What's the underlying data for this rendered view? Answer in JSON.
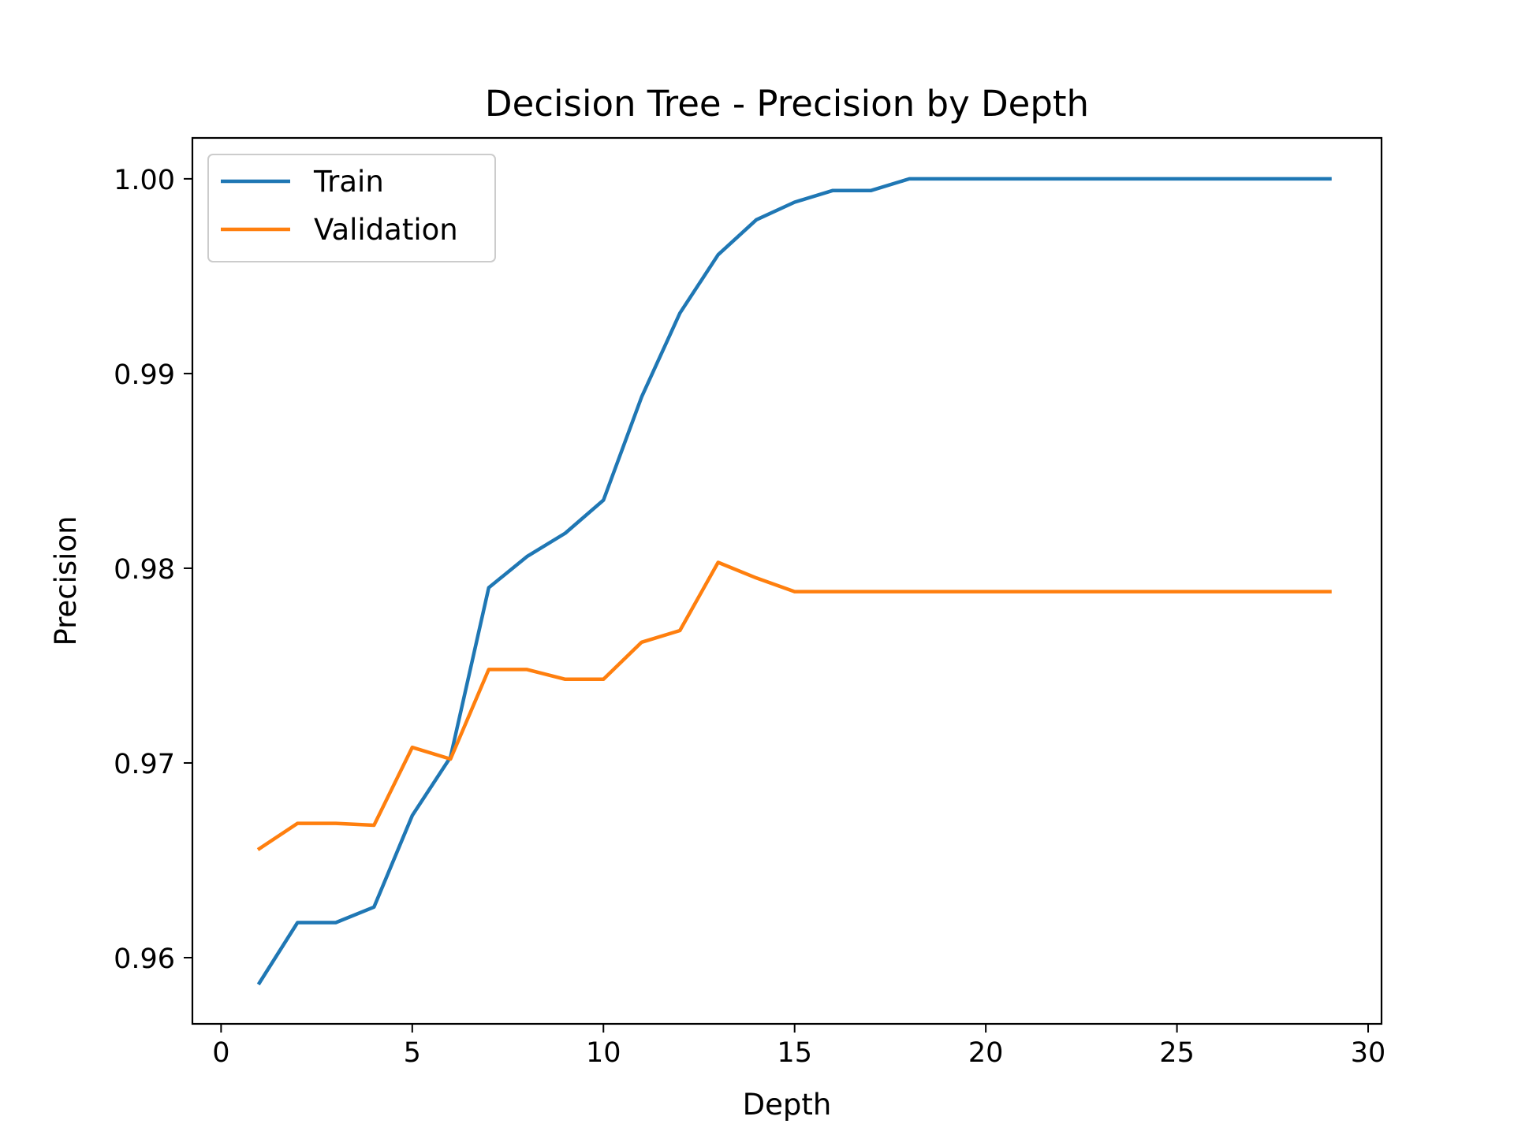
{
  "chart_data": {
    "type": "line",
    "title": "Decision Tree - Precision by Depth",
    "xlabel": "Depth",
    "ylabel": "Precision",
    "xlim": [
      -0.75,
      30.35
    ],
    "ylim": [
      0.9566,
      1.0021
    ],
    "xticks": [
      0,
      5,
      10,
      15,
      20,
      25,
      30
    ],
    "xtick_labels": [
      "0",
      "5",
      "10",
      "15",
      "20",
      "25",
      "30"
    ],
    "yticks": [
      0.96,
      0.97,
      0.98,
      0.99,
      1.0
    ],
    "ytick_labels": [
      "0.96",
      "0.97",
      "0.98",
      "0.99",
      "1.00"
    ],
    "grid": false,
    "legend_position": "upper-left",
    "x": [
      1,
      2,
      3,
      4,
      5,
      6,
      7,
      8,
      9,
      10,
      11,
      12,
      13,
      14,
      15,
      16,
      17,
      18,
      19,
      20,
      21,
      22,
      23,
      24,
      25,
      26,
      27,
      28,
      29
    ],
    "series": [
      {
        "name": "Train",
        "color": "#1f77b4",
        "values": [
          0.9587,
          0.9618,
          0.9618,
          0.9626,
          0.9673,
          0.9703,
          0.979,
          0.9806,
          0.9818,
          0.9835,
          0.9888,
          0.9931,
          0.9961,
          0.9979,
          0.9988,
          0.9994,
          0.9994,
          1.0,
          1.0,
          1.0,
          1.0,
          1.0,
          1.0,
          1.0,
          1.0,
          1.0,
          1.0,
          1.0,
          1.0
        ]
      },
      {
        "name": "Validation",
        "color": "#ff7f0e",
        "values": [
          0.9656,
          0.9669,
          0.9669,
          0.9668,
          0.9708,
          0.9702,
          0.9748,
          0.9748,
          0.9743,
          0.9743,
          0.9762,
          0.9768,
          0.9803,
          0.9795,
          0.9788,
          0.9788,
          0.9788,
          0.9788,
          0.9788,
          0.9788,
          0.9788,
          0.9788,
          0.9788,
          0.9788,
          0.9788,
          0.9788,
          0.9788,
          0.9788,
          0.9788
        ]
      }
    ]
  }
}
